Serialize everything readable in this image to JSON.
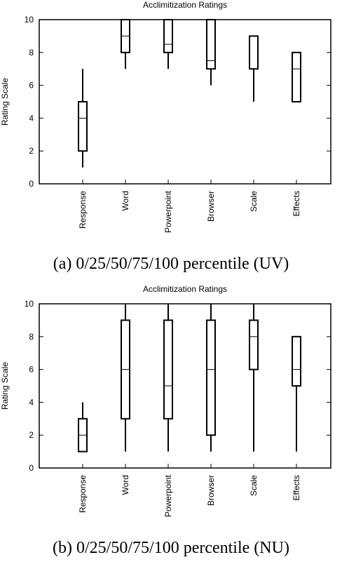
{
  "chart_data": [
    {
      "type": "box",
      "title": "Acclimitization Ratings",
      "ylabel": "Rating Scale",
      "xlabel": "",
      "ylim": [
        0,
        10
      ],
      "yticks": [
        0,
        2,
        4,
        6,
        8,
        10
      ],
      "categories": [
        "Response",
        "Word",
        "Powerpoint",
        "Browser",
        "Scale",
        "Effects"
      ],
      "boxes": [
        {
          "category": "Response",
          "min": 1,
          "q1": 2,
          "median": 4,
          "q3": 5,
          "max": 7
        },
        {
          "category": "Word",
          "min": 7,
          "q1": 8,
          "median": 9,
          "q3": 10,
          "max": 10
        },
        {
          "category": "Powerpoint",
          "min": 7,
          "q1": 8,
          "median": 8.5,
          "q3": 10,
          "max": 10
        },
        {
          "category": "Browser",
          "min": 6,
          "q1": 7,
          "median": 7.5,
          "q3": 10,
          "max": 10
        },
        {
          "category": "Scale",
          "min": 5,
          "q1": 7,
          "median": 7,
          "q3": 9,
          "max": 9
        },
        {
          "category": "Effects",
          "min": 5,
          "q1": 5,
          "median": 7,
          "q3": 8,
          "max": 8
        }
      ],
      "caption": "(a) 0/25/50/75/100 percentile (UV)"
    },
    {
      "type": "box",
      "title": "Acclimitization Ratings",
      "ylabel": "Rating Scale",
      "xlabel": "",
      "ylim": [
        0,
        10
      ],
      "yticks": [
        0,
        2,
        4,
        6,
        8,
        10
      ],
      "categories": [
        "Response",
        "Word",
        "Powerpoint",
        "Browser",
        "Scale",
        "Effects"
      ],
      "boxes": [
        {
          "category": "Response",
          "min": 1,
          "q1": 1,
          "median": 2,
          "q3": 3,
          "max": 4
        },
        {
          "category": "Word",
          "min": 1,
          "q1": 3,
          "median": 6,
          "q3": 9,
          "max": 10
        },
        {
          "category": "Powerpoint",
          "min": 1,
          "q1": 3,
          "median": 5,
          "q3": 9,
          "max": 10
        },
        {
          "category": "Browser",
          "min": 1,
          "q1": 2,
          "median": 6,
          "q3": 9,
          "max": 10
        },
        {
          "category": "Scale",
          "min": 1,
          "q1": 6,
          "median": 8,
          "q3": 9,
          "max": 10
        },
        {
          "category": "Effects",
          "min": 1,
          "q1": 5,
          "median": 6,
          "q3": 8,
          "max": 8
        }
      ],
      "caption": "(b) 0/25/50/75/100 percentile (NU)"
    }
  ]
}
